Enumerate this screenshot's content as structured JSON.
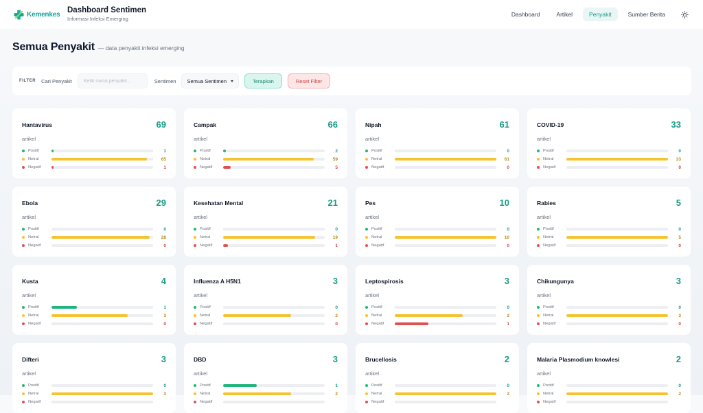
{
  "brand": {
    "logo_text": "Kemenkes",
    "accent": "#12a39a"
  },
  "header": {
    "title": "Dashboard Sentimen",
    "subtitle": "Informasi Infeksi Emerging"
  },
  "nav": [
    {
      "label": "Dashboard",
      "active": false
    },
    {
      "label": "Artikel",
      "active": false
    },
    {
      "label": "Penyakit",
      "active": true
    },
    {
      "label": "Sumber Berita",
      "active": false
    }
  ],
  "theme_toggle_icon": "sun-icon",
  "page": {
    "title": "Semua Penyakit",
    "subtitle": "— data penyakit infeksi emerging"
  },
  "filter": {
    "tag": "FILTER",
    "search_label": "Cari Penyakit",
    "search_placeholder": "Ketik nama penyakit...",
    "search_value": "",
    "sentiment_label": "Sentimen",
    "sentiment_selected": "Semua Sentimen",
    "apply_label": "Terapkan",
    "reset_label": "Reset Filter"
  },
  "labels": {
    "unit": "artikel",
    "positive": "Positif",
    "neutral": "Netral",
    "negative": "Negatif"
  },
  "colors": {
    "positive": "#1fb57c",
    "neutral": "#f3c332",
    "negative": "#e0504e",
    "count": "#1a9b86"
  },
  "diseases": [
    {
      "name": "Hantavirus",
      "count": "69",
      "positive": "1",
      "neutral": "65",
      "negative": "1"
    },
    {
      "name": "Campak",
      "count": "66",
      "positive": "2",
      "neutral": "59",
      "negative": "5"
    },
    {
      "name": "Nipah",
      "count": "61",
      "positive": "0",
      "neutral": "61",
      "negative": "0"
    },
    {
      "name": "COVID-19",
      "count": "33",
      "positive": "0",
      "neutral": "33",
      "negative": "0"
    },
    {
      "name": "Ebola",
      "count": "29",
      "positive": "0",
      "neutral": "28",
      "negative": "0"
    },
    {
      "name": "Kesehatan Mental",
      "count": "21",
      "positive": "0",
      "neutral": "19",
      "negative": "1"
    },
    {
      "name": "Pes",
      "count": "10",
      "positive": "0",
      "neutral": "10",
      "negative": "0"
    },
    {
      "name": "Rabies",
      "count": "5",
      "positive": "0",
      "neutral": "5",
      "negative": "0"
    },
    {
      "name": "Kusta",
      "count": "4",
      "positive": "1",
      "neutral": "3",
      "negative": "0"
    },
    {
      "name": "Influenza A H5N1",
      "count": "3",
      "positive": "0",
      "neutral": "2",
      "negative": "0"
    },
    {
      "name": "Leptospirosis",
      "count": "3",
      "positive": "0",
      "neutral": "2",
      "negative": "1"
    },
    {
      "name": "Chikungunya",
      "count": "3",
      "positive": "0",
      "neutral": "3",
      "negative": "0"
    },
    {
      "name": "Difteri",
      "count": "3",
      "positive": "0",
      "neutral": "3",
      "negative": ""
    },
    {
      "name": "DBD",
      "count": "3",
      "positive": "1",
      "neutral": "2",
      "negative": ""
    },
    {
      "name": "Brucellosis",
      "count": "2",
      "positive": "0",
      "neutral": "2",
      "negative": ""
    },
    {
      "name": "Malaria Plasmodium knowlesi",
      "count": "2",
      "positive": "0",
      "neutral": "2",
      "negative": ""
    }
  ]
}
